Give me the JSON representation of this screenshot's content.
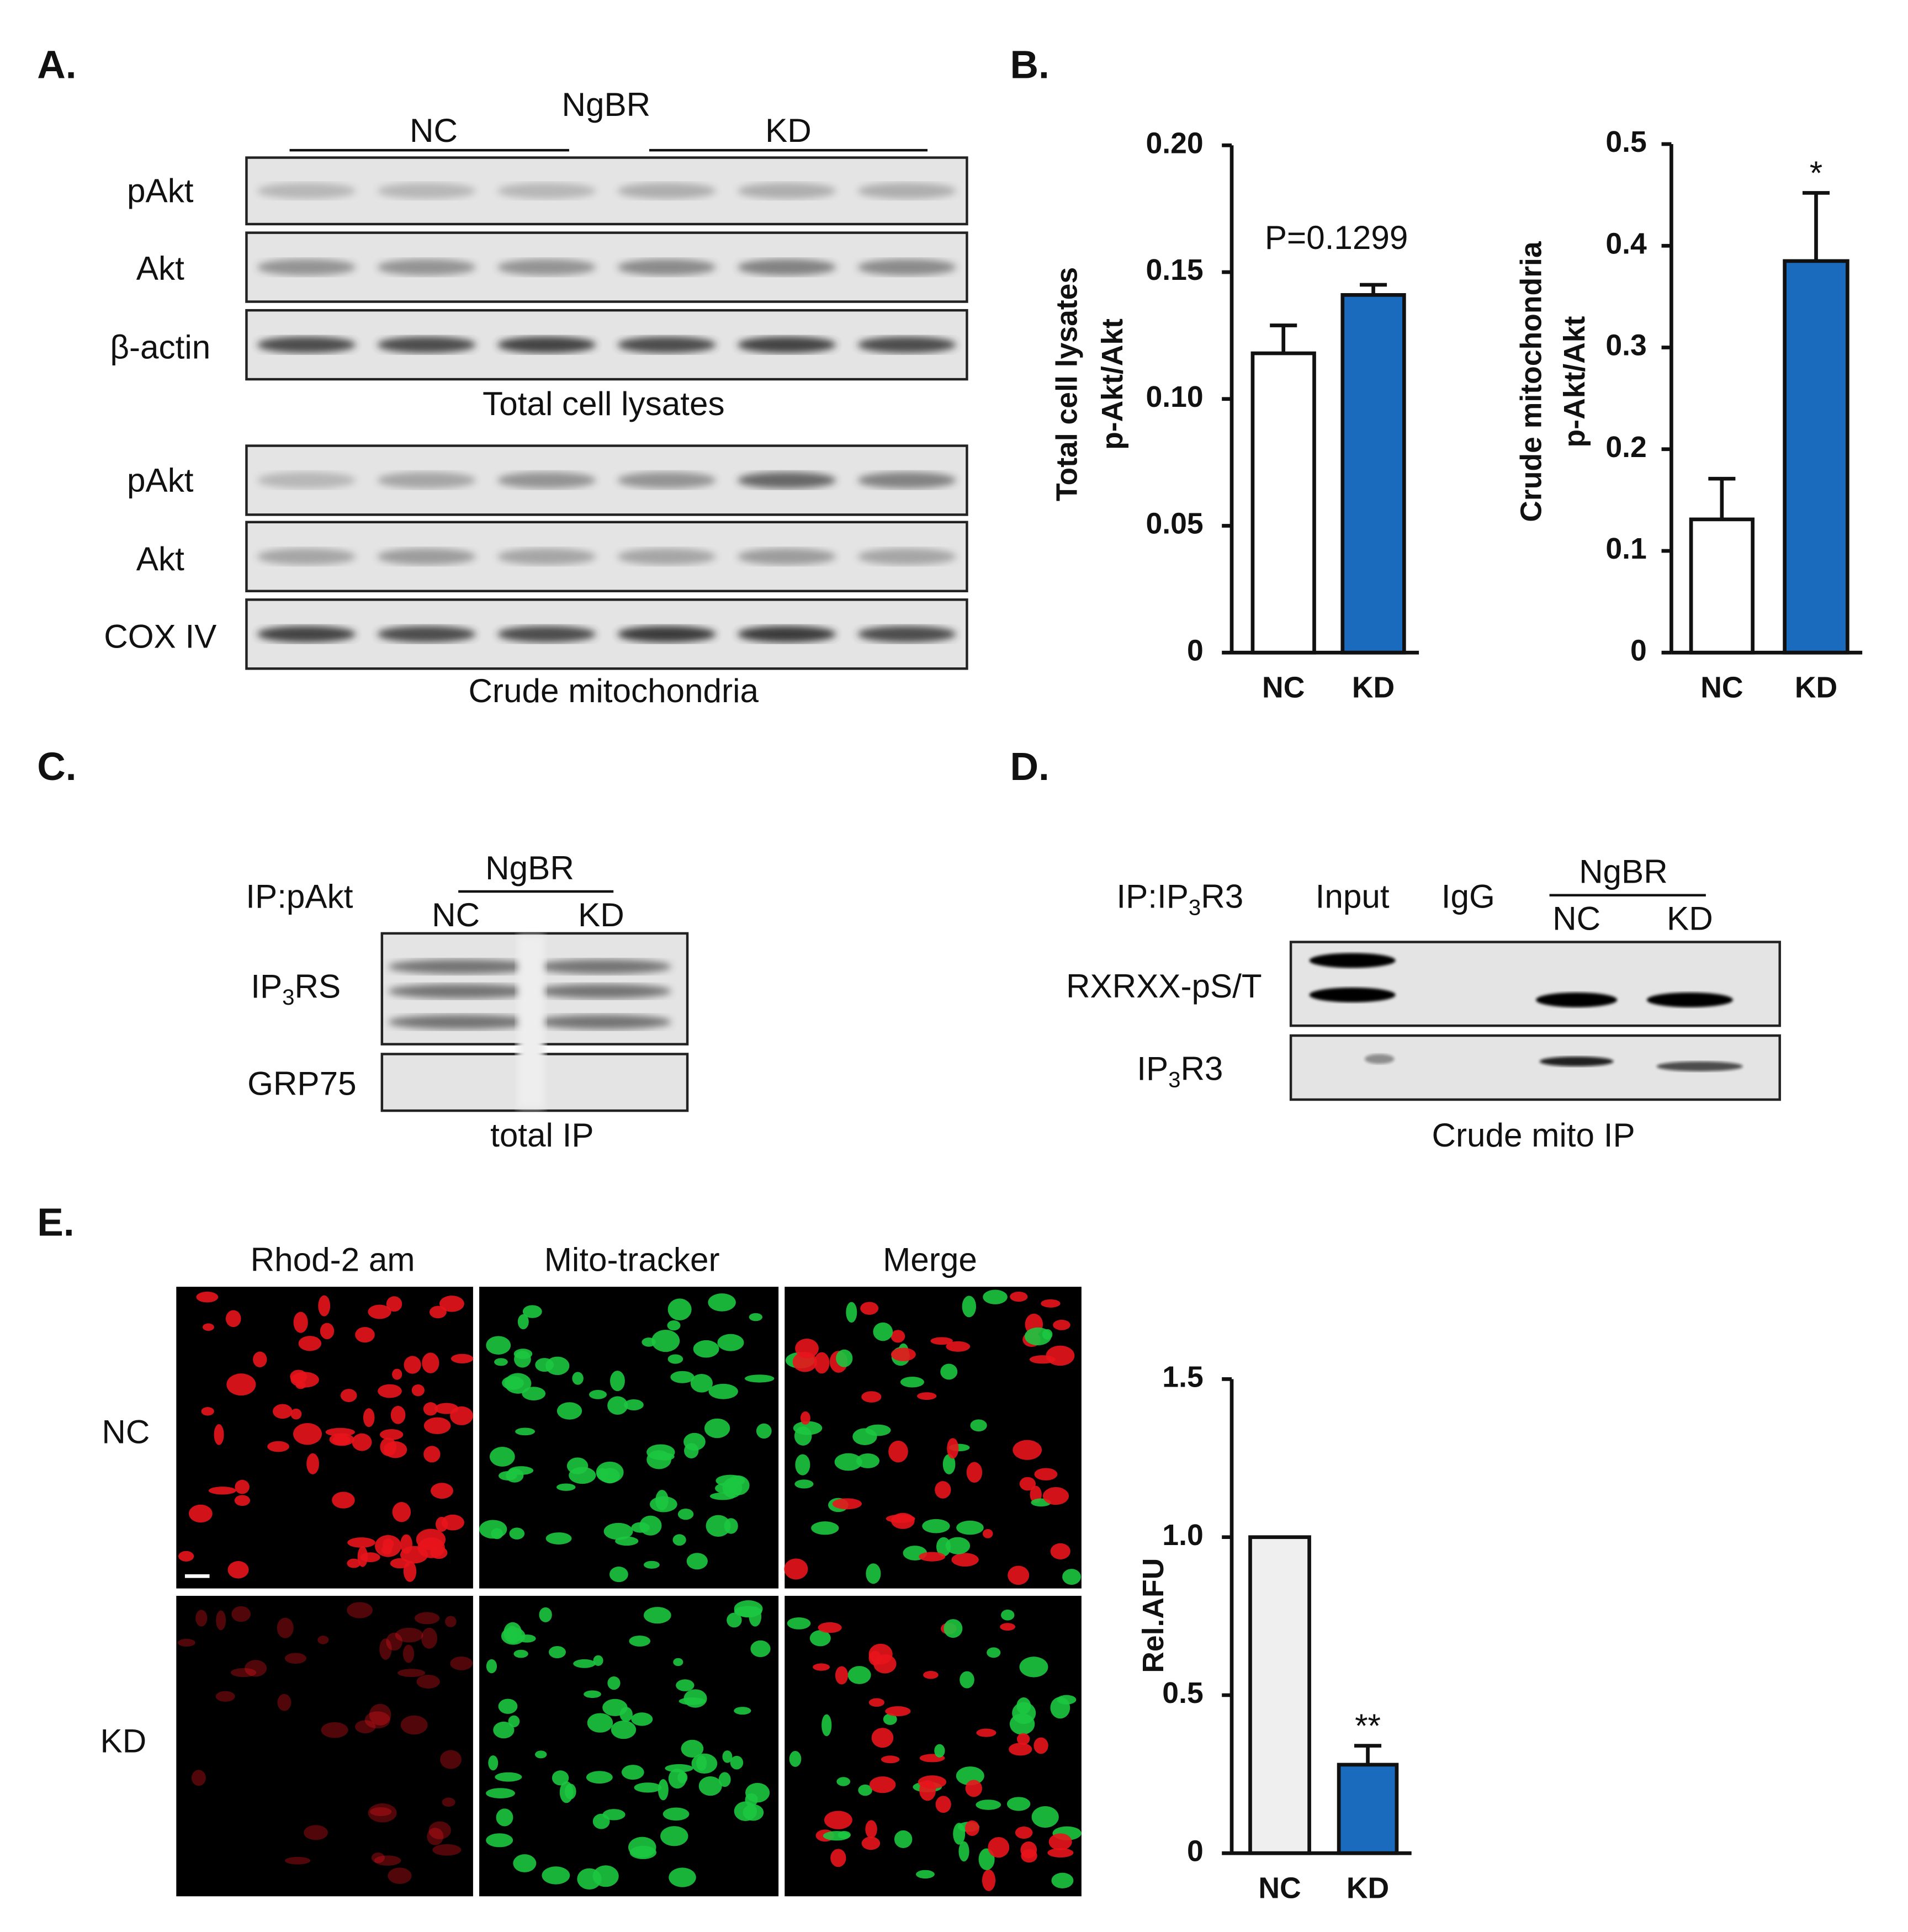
{
  "panel_labels": [
    "A.",
    "B.",
    "C.",
    "D.",
    "E."
  ],
  "panel_a": {
    "group": "NgBR",
    "nc": "NC",
    "kd": "KD",
    "rows_top": [
      "pAkt",
      "Akt",
      "β-actin"
    ],
    "caption_top": "Total cell lysates",
    "rows_bottom": [
      "pAkt",
      "Akt",
      "COX IV"
    ],
    "caption_bottom": "Crude mitochondria"
  },
  "panel_c": {
    "ip": "IP:pAkt",
    "group": "NgBR",
    "nc": "NC",
    "kd": "KD",
    "row1": [
      "IP",
      "3",
      "RS"
    ],
    "row2": "GRP75",
    "caption": "total  IP"
  },
  "panel_d": {
    "ip": [
      "IP:IP",
      "3",
      "R3"
    ],
    "input": "Input",
    "igg": "IgG",
    "group": "NgBR",
    "nc": "NC",
    "kd": "KD",
    "row1": "RXRXX-pS/T",
    "row2": [
      "IP",
      "3",
      "R3"
    ],
    "caption": "Crude mito  IP"
  },
  "panel_e": {
    "columns": [
      "Rhod-2 am",
      "Mito-tracker",
      "Merge"
    ],
    "rows": [
      "NC",
      "KD"
    ]
  },
  "chart_data": [
    {
      "type": "bar",
      "ylabel": [
        "Total cell lysates",
        "p-Akt/Akt"
      ],
      "categories": [
        "NC",
        "KD"
      ],
      "values": [
        0.118,
        0.141
      ],
      "errors": [
        0.011,
        0.004
      ],
      "colors": [
        "#ffffff",
        "#1a6bbd"
      ],
      "ylim": [
        0,
        0.2
      ],
      "yticks": [
        0,
        0.05,
        {
          "value": 0.1,
          "label": "0.10"
        },
        0.15,
        {
          "value": 0.2,
          "label": "0.20"
        }
      ],
      "annotation": "P=0.1299"
    },
    {
      "type": "bar",
      "ylabel": [
        "Crude mitochondria",
        "p-Akt/Akt"
      ],
      "categories": [
        "NC",
        "KD"
      ],
      "values": [
        0.131,
        0.385
      ],
      "errors": [
        0.04,
        0.067
      ],
      "colors": [
        "#ffffff",
        "#1a6bbd"
      ],
      "ylim": [
        0,
        0.5
      ],
      "yticks": [
        0,
        0.1,
        0.2,
        0.3,
        0.4,
        0.5
      ],
      "annotation": "*"
    },
    {
      "type": "bar",
      "ylabel": [
        "Rel.AFU"
      ],
      "categories": [
        "NC",
        "KD"
      ],
      "values": [
        1.0,
        0.28
      ],
      "errors": [
        null,
        0.06
      ],
      "colors": [
        "#efefef",
        "#1a6bbd"
      ],
      "ylim": [
        0,
        1.5
      ],
      "yticks": [
        0,
        0.5,
        {
          "value": 1,
          "label": "1.0"
        },
        1.5
      ],
      "annotation": "**"
    }
  ]
}
